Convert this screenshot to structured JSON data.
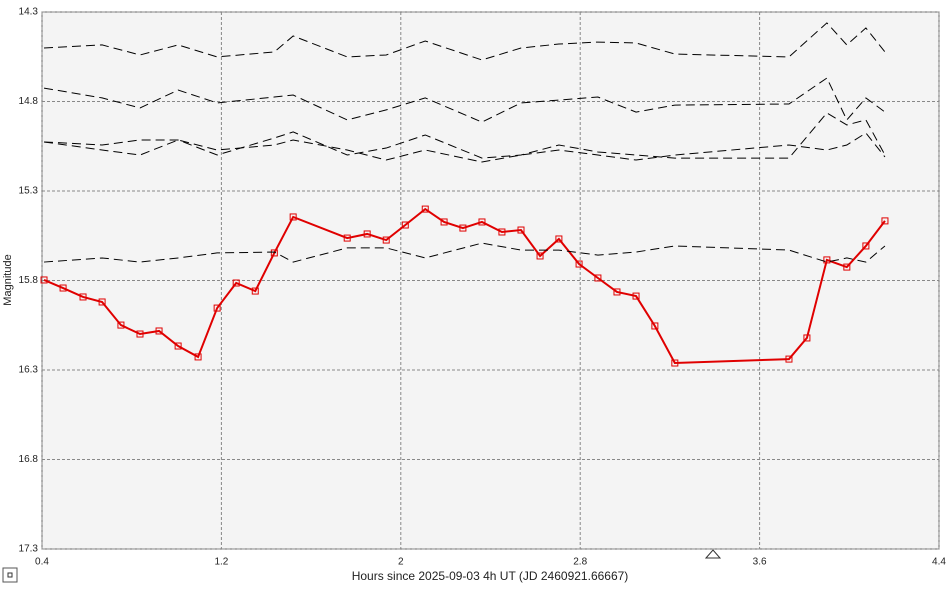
{
  "chart_data": {
    "type": "line",
    "xlabel": "Hours since 2025-09-03 4h UT (JD 2460921.66667)",
    "ylabel": "Magnitude",
    "xlim": [
      0.4,
      4.4
    ],
    "xticks": [
      0.4,
      1.2,
      2,
      2.8,
      3.6,
      4.4
    ],
    "ylim": [
      14.3,
      17.3
    ],
    "yticks": [
      14.3,
      14.8,
      15.3,
      15.8,
      16.3,
      16.8,
      17.3
    ],
    "y_inverted": true,
    "grid": true,
    "series": [
      {
        "color": "#e00000",
        "dashed": false,
        "markers": true,
        "x": [
          0.409,
          0.494,
          0.583,
          0.668,
          0.752,
          0.837,
          0.922,
          1.007,
          1.096,
          1.181,
          1.266,
          1.351,
          1.436,
          1.52,
          1.761,
          1.85,
          1.935,
          2.02,
          2.109,
          2.193,
          2.277,
          2.362,
          2.451,
          2.536,
          2.621,
          2.705,
          2.795,
          2.879,
          2.964,
          3.049,
          3.133,
          3.222,
          3.731,
          3.811,
          3.9,
          3.989,
          4.074,
          4.159
        ],
        "values": [
          15.797,
          15.842,
          15.892,
          15.92,
          16.049,
          16.099,
          16.082,
          16.166,
          16.227,
          15.954,
          15.814,
          15.859,
          15.646,
          15.445,
          15.563,
          15.54,
          15.574,
          15.49,
          15.401,
          15.473,
          15.507,
          15.473,
          15.529,
          15.518,
          15.663,
          15.568,
          15.708,
          15.786,
          15.864,
          15.887,
          16.054,
          16.261,
          16.239,
          16.121,
          15.685,
          15.725,
          15.607,
          15.467
        ]
      },
      {
        "color": "#000000",
        "dashed": true,
        "markers": false,
        "x": [
          0.409,
          0.668,
          0.837,
          1.007,
          1.181,
          1.436,
          1.52,
          1.761,
          1.935,
          2.109,
          2.362,
          2.536,
          2.705,
          2.879,
          3.049,
          3.222,
          3.731,
          3.9,
          3.989,
          4.074,
          4.159
        ],
        "values": [
          14.501,
          14.484,
          14.54,
          14.484,
          14.551,
          14.523,
          14.434,
          14.551,
          14.54,
          14.462,
          14.568,
          14.501,
          14.479,
          14.468,
          14.473,
          14.535,
          14.551,
          14.361,
          14.484,
          14.389,
          14.523
        ]
      },
      {
        "color": "#000000",
        "dashed": true,
        "markers": false,
        "x": [
          0.409,
          0.668,
          0.837,
          1.007,
          1.181,
          1.436,
          1.52,
          1.761,
          1.935,
          2.109,
          2.362,
          2.536,
          2.705,
          2.879,
          3.049,
          3.222,
          3.731,
          3.9,
          3.989,
          4.074,
          4.159
        ],
        "values": [
          14.725,
          14.78,
          14.836,
          14.736,
          14.808,
          14.775,
          14.764,
          14.903,
          14.847,
          14.78,
          14.915,
          14.808,
          14.792,
          14.775,
          14.859,
          14.82,
          14.814,
          14.669,
          14.903,
          14.78,
          14.859
        ]
      },
      {
        "color": "#000000",
        "dashed": true,
        "markers": false,
        "x": [
          0.409,
          0.668,
          0.837,
          1.007,
          1.181,
          1.436,
          1.52,
          1.761,
          1.935,
          2.109,
          2.362,
          2.536,
          2.705,
          2.879,
          3.049,
          3.222,
          3.731,
          3.9,
          3.989,
          4.074,
          4.159
        ],
        "values": [
          15.026,
          15.043,
          15.015,
          15.015,
          15.099,
          15.004,
          14.97,
          15.099,
          15.06,
          14.987,
          15.116,
          15.099,
          15.043,
          15.082,
          15.099,
          15.116,
          15.116,
          14.864,
          14.931,
          14.903,
          15.099
        ]
      },
      {
        "color": "#000000",
        "dashed": true,
        "markers": false,
        "x": [
          0.409,
          0.668,
          0.837,
          1.007,
          1.181,
          1.436,
          1.52,
          1.761,
          1.935,
          2.109,
          2.362,
          2.536,
          2.705,
          2.879,
          3.049,
          3.222,
          3.731,
          3.9,
          3.989,
          4.074,
          4.159
        ],
        "values": [
          15.026,
          15.071,
          15.099,
          15.015,
          15.071,
          15.043,
          15.015,
          15.071,
          15.127,
          15.071,
          15.138,
          15.099,
          15.071,
          15.099,
          15.127,
          15.099,
          15.043,
          15.071,
          15.043,
          14.976,
          15.11
        ]
      },
      {
        "color": "#000000",
        "dashed": true,
        "markers": false,
        "x": [
          0.409,
          0.668,
          0.837,
          1.007,
          1.181,
          1.436,
          1.52,
          1.761,
          1.935,
          2.109,
          2.362,
          2.536,
          2.705,
          2.879,
          3.049,
          3.222,
          3.731,
          3.9,
          3.989,
          4.074,
          4.159
        ],
        "values": [
          15.697,
          15.674,
          15.697,
          15.674,
          15.646,
          15.641,
          15.697,
          15.618,
          15.618,
          15.674,
          15.591,
          15.63,
          15.63,
          15.658,
          15.641,
          15.607,
          15.63,
          15.697,
          15.674,
          15.697,
          15.607
        ]
      }
    ]
  }
}
